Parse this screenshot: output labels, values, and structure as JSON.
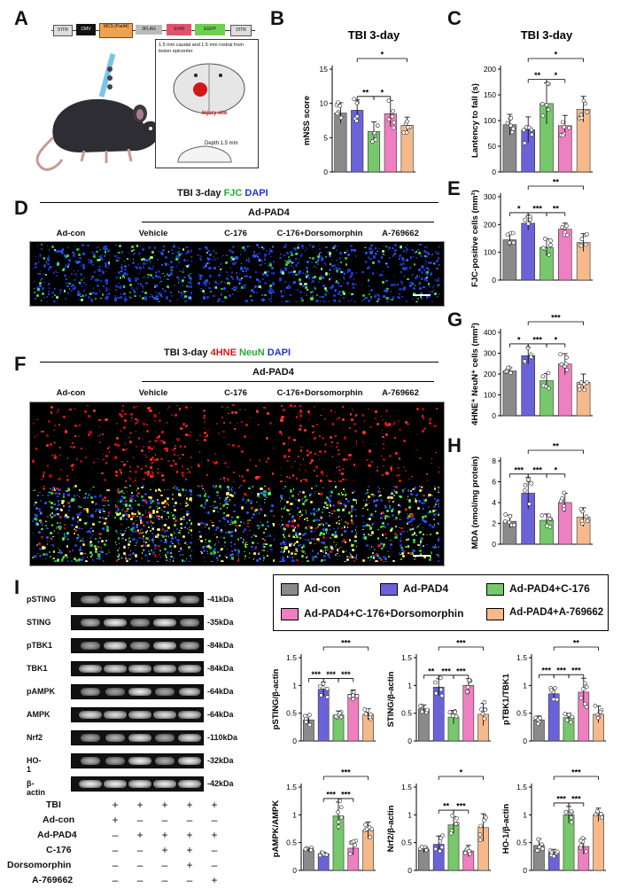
{
  "panels": {
    "A": "A",
    "B": "B",
    "C": "C",
    "D": "D",
    "E": "E",
    "F": "F",
    "G": "G",
    "H": "H",
    "I": "I"
  },
  "construct": [
    "5'ITR",
    "CMV",
    "MCS (Padi4)",
    "3FLAG",
    "SV40",
    "EGFP",
    "3'ITR"
  ],
  "injection_note": "1.5 mm caudal and 1.5 mm rostral from lesion epicenter",
  "injury_label": "Injury site",
  "depth_label": "Depth:1.5 mm",
  "fig_d": {
    "title_prefix": "TBI 3-day ",
    "stain1": "FJC",
    "stain2": "DAPI",
    "group": "Ad-PAD4",
    "cols": [
      "Ad-con",
      "Vehicle",
      "C-176",
      "C-176+Dorsomorphin",
      "A-769662"
    ]
  },
  "fig_f": {
    "title_prefix": "TBI 3-day ",
    "stain1": "4HNE",
    "stain2": "NeuN",
    "stain3": "DAPI",
    "group": "Ad-PAD4",
    "cols": [
      "Ad-con",
      "Vehicle",
      "C-176",
      "C-176+Dorsomorphin",
      "A-769662"
    ]
  },
  "colors": [
    "#8a8a8a",
    "#6a63d8",
    "#77c86c",
    "#ef7fc0",
    "#f6b98a"
  ],
  "legend": [
    "Ad-con",
    "Ad-PAD4",
    "Ad-PAD4+C-176",
    "Ad-PAD4+C-176+Dorsomorphin",
    "Ad-PAD4+A-769662"
  ],
  "blots": [
    {
      "name": "pSTING",
      "kda": "-41kDa"
    },
    {
      "name": "STING",
      "kda": "-35kDa"
    },
    {
      "name": "pTBK1",
      "kda": "-84kDa"
    },
    {
      "name": "TBK1",
      "kda": "-84kDa"
    },
    {
      "name": "pAMPK",
      "kda": "-64kDa"
    },
    {
      "name": "AMPK",
      "kda": "-64kDa"
    },
    {
      "name": "Nrf2",
      "kda": "-110kDa"
    },
    {
      "name": "HO-1",
      "kda": "-32kDa"
    },
    {
      "name": "β-actin",
      "kda": "-42kDa"
    }
  ],
  "treatment_table": {
    "rows": [
      {
        "label": "TBI",
        "marks": [
          "+",
          "+",
          "+",
          "+",
          "+"
        ]
      },
      {
        "label": "Ad-con",
        "marks": [
          "+",
          "–",
          "–",
          "–",
          "–"
        ]
      },
      {
        "label": "Ad-PAD4",
        "marks": [
          "–",
          "+",
          "+",
          "+",
          "+"
        ]
      },
      {
        "label": "C-176",
        "marks": [
          "–",
          "–",
          "+",
          "+",
          "–"
        ]
      },
      {
        "label": "Dorsomorphin",
        "marks": [
          "–",
          "–",
          "–",
          "+",
          "–"
        ]
      },
      {
        "label": "A-769662",
        "marks": [
          "–",
          "–",
          "–",
          "–",
          "+"
        ]
      }
    ]
  },
  "chart_data": [
    {
      "id": "B",
      "type": "bar",
      "title": "TBI 3-day",
      "ylabel": "mNSS score",
      "xlabel": "",
      "ylim": [
        0,
        15
      ],
      "yticks": [
        0,
        5,
        10,
        15
      ],
      "values": [
        8.6,
        9.0,
        5.9,
        8.5,
        6.8
      ],
      "errors": [
        1.5,
        1.5,
        1.4,
        1.9,
        1.2
      ],
      "sig": [
        {
          "a": 1,
          "b": 2,
          "t": "**",
          "lvl": 0
        },
        {
          "a": 2,
          "b": 3,
          "t": "*",
          "lvl": 0
        },
        {
          "a": 1,
          "b": 4,
          "t": "*",
          "lvl": 1
        }
      ]
    },
    {
      "id": "C",
      "type": "bar",
      "title": "TBI 3-day",
      "ylabel": "Lantency to fall (s)",
      "xlabel": "",
      "ylim": [
        0,
        200
      ],
      "yticks": [
        0,
        50,
        100,
        150,
        200
      ],
      "values": [
        92,
        82,
        133,
        90,
        122
      ],
      "errors": [
        20,
        25,
        40,
        20,
        25
      ],
      "sig": [
        {
          "a": 1,
          "b": 2,
          "t": "**",
          "lvl": 0
        },
        {
          "a": 2,
          "b": 3,
          "t": "*",
          "lvl": 0
        },
        {
          "a": 1,
          "b": 4,
          "t": "*",
          "lvl": 1
        }
      ]
    },
    {
      "id": "E",
      "type": "bar",
      "title": "",
      "ylabel": "FJC-positive cells (mm²)",
      "xlabel": "",
      "ylim": [
        0,
        300
      ],
      "yticks": [
        0,
        100,
        200,
        300
      ],
      "values": [
        145,
        205,
        118,
        183,
        135
      ],
      "errors": [
        22,
        25,
        30,
        22,
        32
      ],
      "sig": [
        {
          "a": 0,
          "b": 1,
          "t": "*",
          "lvl": 0
        },
        {
          "a": 1,
          "b": 2,
          "t": "***",
          "lvl": 0
        },
        {
          "a": 2,
          "b": 3,
          "t": "**",
          "lvl": 0
        },
        {
          "a": 1,
          "b": 4,
          "t": "**",
          "lvl": 1
        }
      ]
    },
    {
      "id": "G",
      "type": "bar",
      "title": "",
      "ylabel": "4HNE⁺ NeuN⁺ cells (mm²)",
      "xlabel": "",
      "ylim": [
        0,
        400
      ],
      "yticks": [
        0,
        100,
        200,
        300,
        400
      ],
      "values": [
        215,
        288,
        168,
        248,
        160
      ],
      "errors": [
        15,
        40,
        35,
        50,
        40
      ],
      "sig": [
        {
          "a": 0,
          "b": 1,
          "t": "*",
          "lvl": 0
        },
        {
          "a": 1,
          "b": 2,
          "t": "***",
          "lvl": 0
        },
        {
          "a": 2,
          "b": 3,
          "t": "*",
          "lvl": 0
        },
        {
          "a": 1,
          "b": 4,
          "t": "***",
          "lvl": 1
        }
      ]
    },
    {
      "id": "H",
      "type": "bar",
      "title": "",
      "ylabel": "MDA (nmol/mg protein)",
      "xlabel": "",
      "ylim": [
        0,
        8
      ],
      "yticks": [
        0,
        2,
        4,
        6,
        8
      ],
      "values": [
        2.2,
        4.9,
        2.3,
        4.0,
        2.6
      ],
      "errors": [
        0.6,
        1.5,
        0.6,
        0.9,
        0.9
      ],
      "sig": [
        {
          "a": 0,
          "b": 1,
          "t": "***",
          "lvl": 0
        },
        {
          "a": 1,
          "b": 2,
          "t": "***",
          "lvl": 0
        },
        {
          "a": 2,
          "b": 3,
          "t": "*",
          "lvl": 0
        },
        {
          "a": 1,
          "b": 4,
          "t": "**",
          "lvl": 1
        }
      ]
    },
    {
      "id": "pSTING",
      "type": "bar",
      "title": "",
      "ylabel": "pSTING/β-actin",
      "xlabel": "",
      "ylim": [
        0,
        1.5
      ],
      "yticks": [
        0,
        0.5,
        1,
        1.5
      ],
      "values": [
        0.38,
        0.93,
        0.47,
        0.84,
        0.48
      ],
      "errors": [
        0.09,
        0.13,
        0.07,
        0.08,
        0.1
      ],
      "sig": [
        {
          "a": 0,
          "b": 1,
          "t": "***",
          "lvl": 0
        },
        {
          "a": 1,
          "b": 2,
          "t": "***",
          "lvl": 0
        },
        {
          "a": 2,
          "b": 3,
          "t": "***",
          "lvl": 0
        },
        {
          "a": 1,
          "b": 4,
          "t": "***",
          "lvl": 1
        }
      ]
    },
    {
      "id": "STING",
      "type": "bar",
      "title": "",
      "ylabel": "STING/β-actin",
      "xlabel": "",
      "ylim": [
        0,
        1.5
      ],
      "yticks": [
        0,
        0.5,
        1,
        1.5
      ],
      "values": [
        0.58,
        0.97,
        0.43,
        1.0,
        0.48
      ],
      "errors": [
        0.07,
        0.15,
        0.12,
        0.12,
        0.2
      ],
      "sig": [
        {
          "a": 0,
          "b": 1,
          "t": "**",
          "lvl": 0
        },
        {
          "a": 1,
          "b": 2,
          "t": "***",
          "lvl": 0
        },
        {
          "a": 2,
          "b": 3,
          "t": "***",
          "lvl": 0
        },
        {
          "a": 1,
          "b": 4,
          "t": "***",
          "lvl": 1
        }
      ]
    },
    {
      "id": "pTBK1",
      "type": "bar",
      "title": "",
      "ylabel": "pTBK1/TBK1",
      "xlabel": "",
      "ylim": [
        0,
        1.5
      ],
      "yticks": [
        0,
        0.5,
        1,
        1.5
      ],
      "values": [
        0.38,
        0.85,
        0.42,
        0.88,
        0.48
      ],
      "errors": [
        0.07,
        0.1,
        0.08,
        0.25,
        0.15
      ],
      "sig": [
        {
          "a": 0,
          "b": 1,
          "t": "***",
          "lvl": 0
        },
        {
          "a": 1,
          "b": 2,
          "t": "***",
          "lvl": 0
        },
        {
          "a": 2,
          "b": 3,
          "t": "***",
          "lvl": 0
        },
        {
          "a": 1,
          "b": 4,
          "t": "**",
          "lvl": 1
        }
      ]
    },
    {
      "id": "pAMPK",
      "type": "bar",
      "title": "",
      "ylabel": "pAMPK/AMPK",
      "xlabel": "",
      "ylim": [
        0,
        1.5
      ],
      "yticks": [
        0,
        0.5,
        1,
        1.5
      ],
      "values": [
        0.37,
        0.3,
        0.98,
        0.4,
        0.72
      ],
      "errors": [
        0.04,
        0.03,
        0.25,
        0.12,
        0.15
      ],
      "sig": [
        {
          "a": 1,
          "b": 2,
          "t": "***",
          "lvl": 0
        },
        {
          "a": 2,
          "b": 3,
          "t": "***",
          "lvl": 0
        },
        {
          "a": 1,
          "b": 4,
          "t": "***",
          "lvl": 1
        }
      ]
    },
    {
      "id": "Nrf2",
      "type": "bar",
      "title": "",
      "ylabel": "Nrf2/β-actin",
      "xlabel": "",
      "ylim": [
        0,
        1.5
      ],
      "yticks": [
        0,
        0.5,
        1,
        1.5
      ],
      "values": [
        0.37,
        0.47,
        0.82,
        0.35,
        0.77
      ],
      "errors": [
        0.05,
        0.15,
        0.15,
        0.1,
        0.25
      ],
      "sig": [
        {
          "a": 1,
          "b": 2,
          "t": "**",
          "lvl": 0
        },
        {
          "a": 2,
          "b": 3,
          "t": "***",
          "lvl": 0
        },
        {
          "a": 1,
          "b": 4,
          "t": "*",
          "lvl": 1
        }
      ]
    },
    {
      "id": "HO-1",
      "type": "bar",
      "title": "",
      "ylabel": "HO-1/β-actin",
      "xlabel": "",
      "ylim": [
        0,
        1.5
      ],
      "yticks": [
        0,
        0.5,
        1,
        1.5
      ],
      "values": [
        0.45,
        0.32,
        1.0,
        0.43,
        1.0
      ],
      "errors": [
        0.12,
        0.06,
        0.15,
        0.14,
        0.12
      ],
      "sig": [
        {
          "a": 1,
          "b": 2,
          "t": "***",
          "lvl": 0
        },
        {
          "a": 2,
          "b": 3,
          "t": "***",
          "lvl": 0
        },
        {
          "a": 1,
          "b": 4,
          "t": "***",
          "lvl": 1
        }
      ]
    }
  ]
}
